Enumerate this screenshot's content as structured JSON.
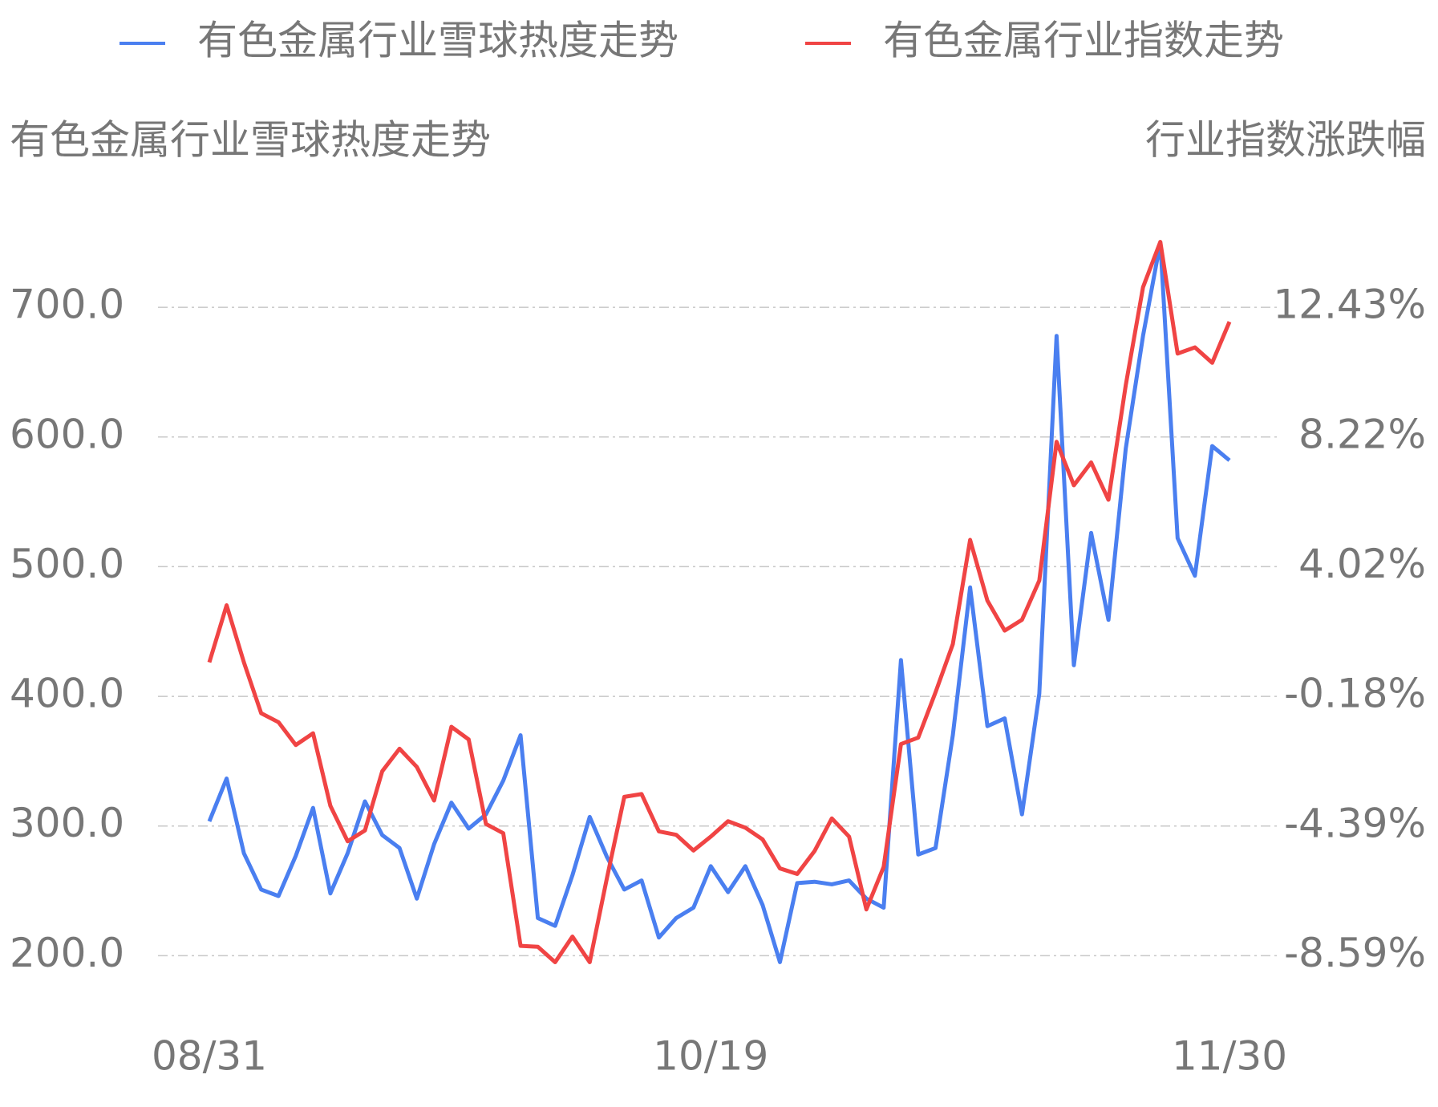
{
  "chart_data": {
    "type": "line",
    "y_title": "有色金属行业雪球热度走势",
    "y2_title": "行业指数涨跌幅",
    "categories": [
      "08/31",
      null,
      null,
      null,
      null,
      null,
      null,
      null,
      null,
      null,
      null,
      null,
      null,
      null,
      null,
      null,
      null,
      null,
      null,
      null,
      null,
      null,
      null,
      null,
      null,
      null,
      null,
      null,
      null,
      "10/19",
      null,
      null,
      null,
      null,
      null,
      null,
      null,
      null,
      null,
      null,
      null,
      null,
      null,
      null,
      null,
      null,
      null,
      null,
      null,
      null,
      null,
      null,
      null,
      null,
      null,
      null,
      null,
      null,
      null,
      "11/30"
    ],
    "series": [
      {
        "name": "有色金属行业雪球热度走势",
        "color": "#4a7ff0",
        "values": [
          303.6,
          336.6,
          279,
          251,
          246,
          277,
          314,
          248,
          279,
          319,
          293,
          283,
          244,
          286,
          318,
          298,
          309,
          335,
          370,
          229,
          223,
          262,
          307,
          276,
          251,
          258,
          214,
          229,
          237,
          269,
          249,
          269,
          239,
          195,
          256,
          257,
          255,
          258,
          244,
          237,
          428,
          278,
          283,
          370,
          484,
          377,
          383,
          309,
          402,
          678,
          424,
          526,
          459,
          591,
          678,
          750,
          522,
          493,
          593,
          582
        ]
      },
      {
        "name": "有色金属行业指数走势",
        "color": "#f04444",
        "axis": "y2",
        "values": [
          0.92,
          2.77,
          0.92,
          -0.73,
          -1.02,
          -1.76,
          -1.38,
          -3.73,
          -4.88,
          -4.53,
          -2.61,
          -1.88,
          -2.47,
          -3.56,
          -1.17,
          -1.58,
          -4.32,
          -4.62,
          -8.27,
          -8.3,
          -8.8,
          -7.97,
          -8.8,
          -6.06,
          -3.44,
          -3.35,
          -4.56,
          -4.67,
          -5.18,
          -4.73,
          -4.23,
          -4.44,
          -4.82,
          -5.76,
          -5.94,
          -5.2,
          -4.14,
          -4.73,
          -7.09,
          -5.71,
          -1.73,
          -1.52,
          -0.05,
          1.51,
          4.89,
          2.92,
          1.95,
          2.3,
          3.57,
          8.07,
          6.66,
          7.4,
          6.19,
          9.9,
          13.08,
          14.55,
          10.93,
          11.13,
          10.63,
          11.96
        ]
      }
    ],
    "ylim": [
      160,
      770
    ],
    "yticks": [
      {
        "value": 200,
        "label": "200.0"
      },
      {
        "value": 300,
        "label": "300.0"
      },
      {
        "value": 400,
        "label": "400.0"
      },
      {
        "value": 500,
        "label": "500.0"
      },
      {
        "value": 600,
        "label": "600.0"
      },
      {
        "value": 700,
        "label": "700.0"
      }
    ],
    "y2lim": [
      -10.27,
      15.37
    ],
    "y2ticks": [
      {
        "value": -8.59,
        "label": "-8.59%"
      },
      {
        "value": -4.39,
        "label": "-4.39%"
      },
      {
        "value": -0.18,
        "label": "-0.18%"
      },
      {
        "value": 4.02,
        "label": "4.02%"
      },
      {
        "value": 8.22,
        "label": "8.22%"
      },
      {
        "value": 12.43,
        "label": "12.43%"
      }
    ],
    "grid": true,
    "legend": "top"
  }
}
